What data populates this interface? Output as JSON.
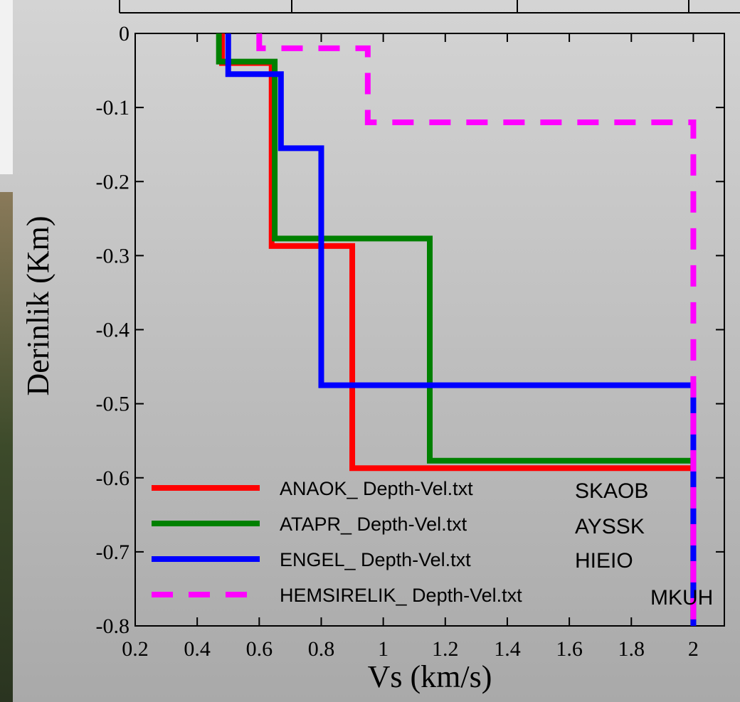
{
  "chart_data": {
    "type": "line",
    "xlabel": "Vs (km/s)",
    "ylabel": "Derinlik (Km)",
    "xlim": [
      0.2,
      2.1
    ],
    "ylim": [
      -0.8,
      0
    ],
    "xticks": [
      0.2,
      0.4,
      0.6,
      0.8,
      1,
      1.2,
      1.4,
      1.6,
      1.8,
      2
    ],
    "yticks": [
      0,
      -0.1,
      -0.2,
      -0.3,
      -0.4,
      -0.5,
      -0.6,
      -0.7,
      -0.8
    ],
    "legend": "lower left",
    "series": [
      {
        "name": "ANAOK_  Depth-Vel.txt",
        "color": "#ff0000",
        "dashed": false,
        "x": [
          0.48,
          0.48,
          0.64,
          0.64,
          0.9,
          0.9,
          2,
          2
        ],
        "values": [
          0,
          -0.04,
          -0.04,
          -0.287,
          -0.287,
          -0.587,
          -0.587,
          -0.8
        ]
      },
      {
        "name": "ATAPR_  Depth-Vel.txt",
        "color": "#008000",
        "dashed": false,
        "x": [
          0.47,
          0.47,
          0.65,
          0.65,
          1.15,
          1.15,
          2,
          2
        ],
        "values": [
          0,
          -0.038,
          -0.038,
          -0.277,
          -0.277,
          -0.577,
          -0.577,
          -0.8
        ]
      },
      {
        "name": "ENGEL_  Depth-Vel.txt",
        "color": "#0000ff",
        "dashed": false,
        "x": [
          0.5,
          0.5,
          0.67,
          0.67,
          0.8,
          0.8,
          2,
          2
        ],
        "values": [
          0,
          -0.055,
          -0.055,
          -0.155,
          -0.155,
          -0.475,
          -0.475,
          -0.8
        ]
      },
      {
        "name": "HEMSIRELIK_  Depth-Vel.txt",
        "color": "#ff00ff",
        "dashed": true,
        "x": [
          0.6,
          0.6,
          0.95,
          0.95,
          2,
          2
        ],
        "values": [
          0,
          -0.02,
          -0.02,
          -0.12,
          -0.12,
          -0.8
        ]
      }
    ],
    "annotations": [
      "SKAOB",
      "AYSSK",
      "HIEIO",
      "MKUH"
    ]
  }
}
